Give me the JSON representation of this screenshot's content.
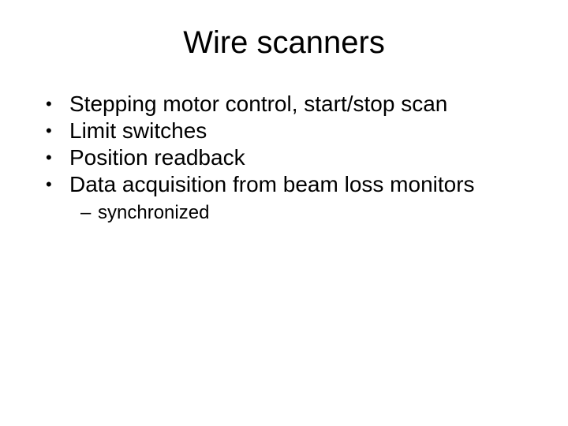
{
  "slide": {
    "title": "Wire scanners",
    "title_fontsize": 40,
    "title_color": "#000000",
    "background_color": "#ffffff",
    "bullets": [
      {
        "text": "Stepping motor control, start/stop scan"
      },
      {
        "text": "Limit switches"
      },
      {
        "text": "Position readback"
      },
      {
        "text": "Data acquisition from beam loss monitors",
        "sub": [
          {
            "text": "synchronized"
          }
        ]
      }
    ],
    "bullet_fontsize": 28,
    "sub_bullet_fontsize": 24,
    "bullet_marker": "•",
    "sub_bullet_marker": "–",
    "text_color": "#000000",
    "font_family": "Arial"
  }
}
